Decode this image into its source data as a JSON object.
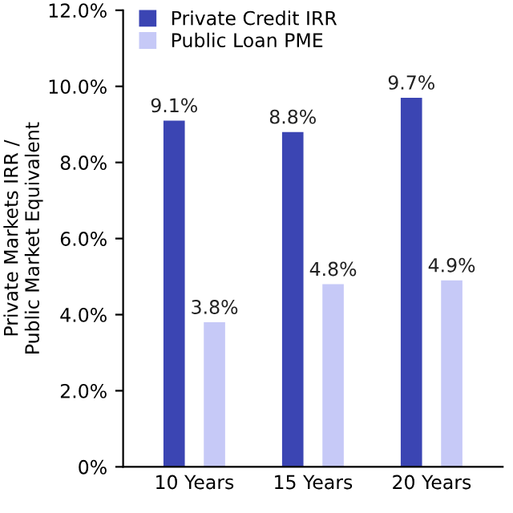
{
  "chart_data": {
    "type": "bar",
    "ylabel": "Private Markets IRR /\nPublic Market Equivalent",
    "categories": [
      "10 Years",
      "15 Years",
      "20 Years"
    ],
    "series": [
      {
        "name": "Private Credit IRR",
        "color": "#3b45b3",
        "values": [
          9.1,
          8.8,
          9.7
        ],
        "value_labels": [
          "9.1%",
          "8.8%",
          "9.7%"
        ]
      },
      {
        "name": "Public Loan PME",
        "color": "#c6c9f7",
        "values": [
          3.8,
          4.8,
          4.9
        ],
        "value_labels": [
          "3.8%",
          "4.8%",
          "4.9%"
        ]
      }
    ],
    "ylim": [
      0,
      12
    ],
    "yticks": [
      {
        "value": 0,
        "label": "0%"
      },
      {
        "value": 2,
        "label": "2.0%"
      },
      {
        "value": 4,
        "label": "4.0%"
      },
      {
        "value": 6,
        "label": "6.0%"
      },
      {
        "value": 8,
        "label": "8.0%"
      },
      {
        "value": 10,
        "label": "10.0%"
      },
      {
        "value": 12,
        "label": "12.0%"
      }
    ],
    "grid": false,
    "legend": "top left"
  }
}
